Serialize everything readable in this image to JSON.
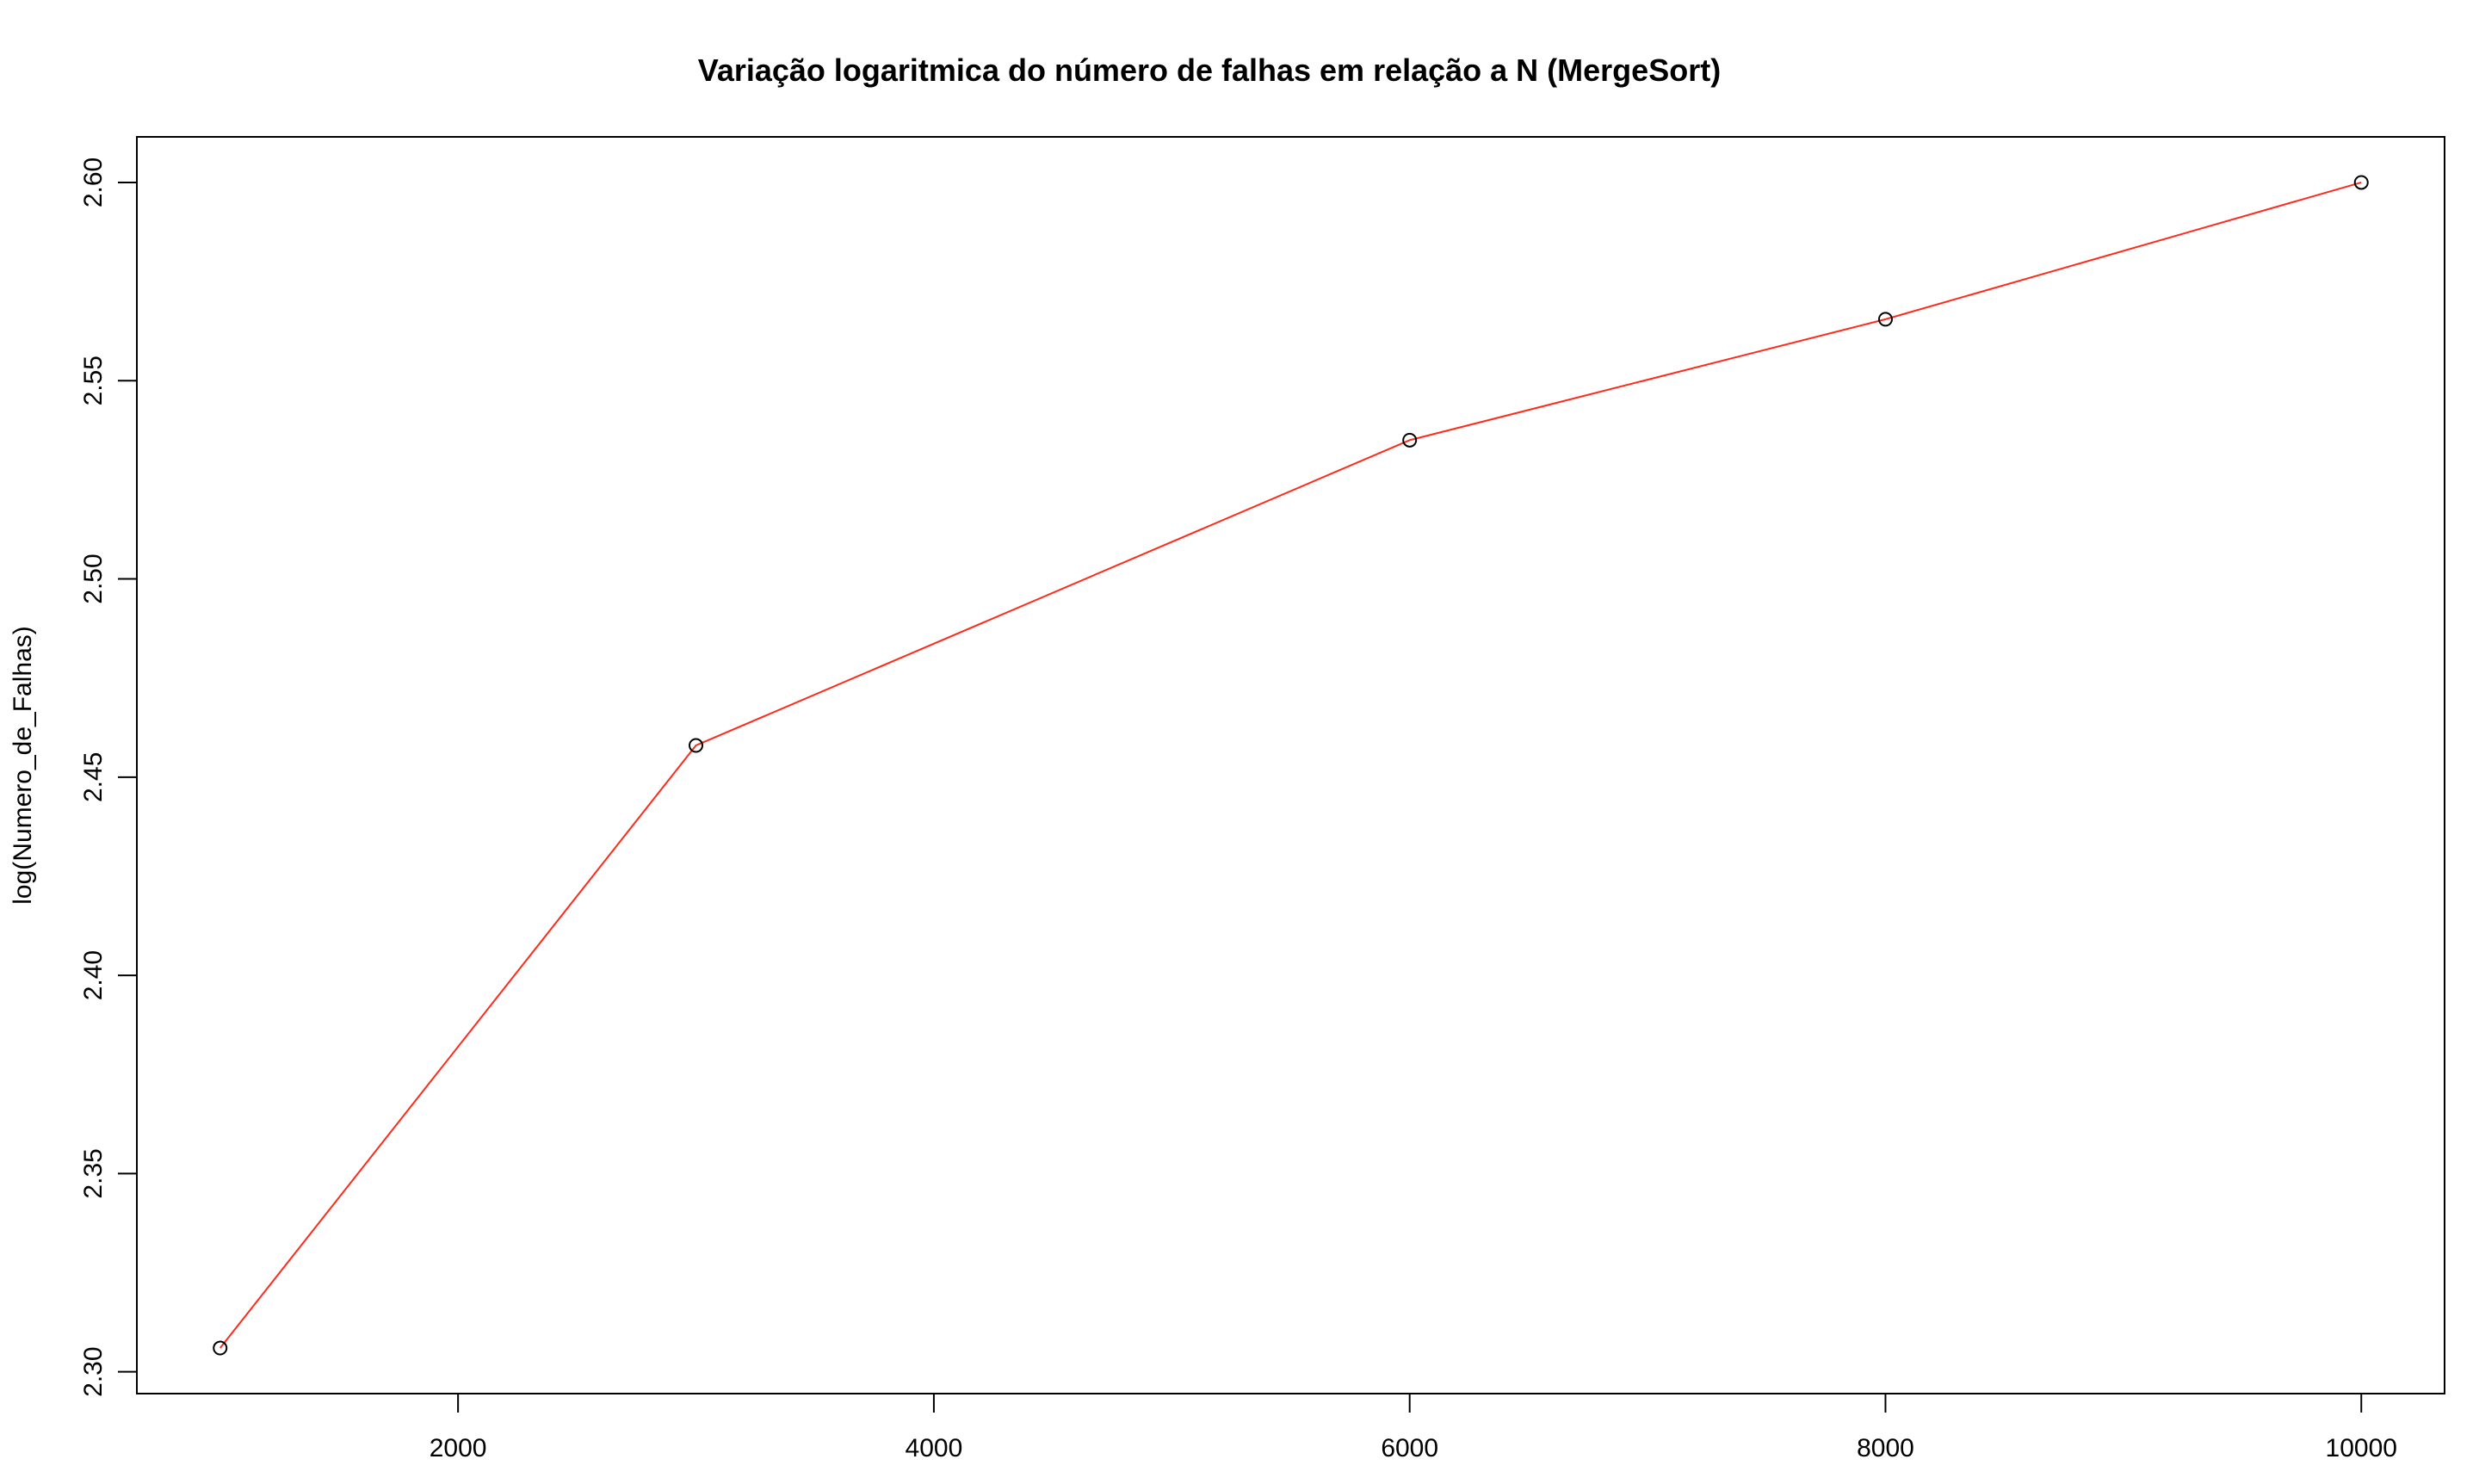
{
  "chart_data": {
    "type": "line",
    "title": "Variação logaritmica do número de falhas em relação a N (MergeSort)",
    "xlabel": "",
    "ylabel": "log(Numero_de_Falhas)",
    "x": [
      1000,
      3000,
      6000,
      8000,
      10000
    ],
    "series": [
      {
        "values": [
          2.306,
          2.458,
          2.535,
          2.5655,
          2.6
        ],
        "color": "#ff2a1a",
        "marker": "open-circle"
      }
    ],
    "xlim": [
      650,
      10350
    ],
    "ylim": [
      2.2945,
      2.6115
    ],
    "xticks": [
      2000,
      4000,
      6000,
      8000,
      10000
    ],
    "xtick_labels": [
      "2000",
      "4000",
      "6000",
      "8000",
      "10000"
    ],
    "yticks": [
      2.3,
      2.35,
      2.4,
      2.45,
      2.5,
      2.55,
      2.6
    ],
    "ytick_labels": [
      "2.30",
      "2.35",
      "2.40",
      "2.45",
      "2.50",
      "2.55",
      "2.60"
    ],
    "grid": false,
    "legend": "none"
  }
}
